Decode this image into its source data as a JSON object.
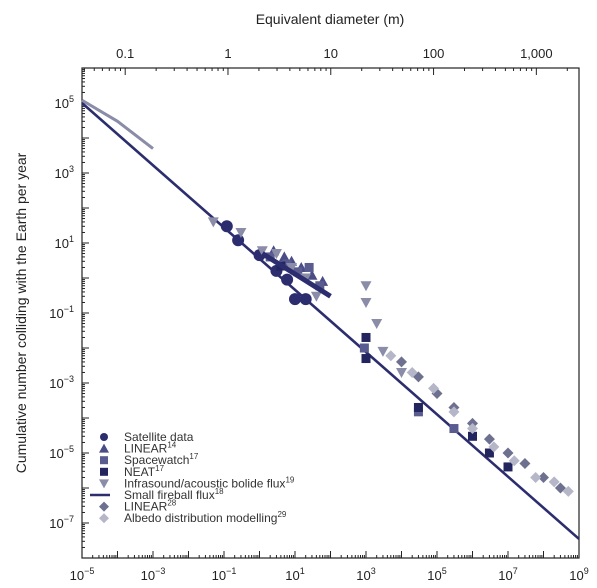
{
  "chart_data": {
    "type": "scatter",
    "title": "",
    "xlabel": "",
    "ylabel": "Cumulative number colliding with the Earth per year",
    "top_xlabel": "Equivalent diameter (m)",
    "x_scale": "log",
    "y_scale": "log",
    "xlim": [
      1e-05,
      1000000000.0
    ],
    "ylim": [
      1e-08,
      1000000.0
    ],
    "top_xlim_m": [
      0.038,
      2600
    ],
    "x_ticks": [
      {
        "exp": -5,
        "label": "10",
        "sup": "−5"
      },
      {
        "exp": -3,
        "label": "10",
        "sup": "−3"
      },
      {
        "exp": -1,
        "label": "10",
        "sup": "−1"
      },
      {
        "exp": 1,
        "label": "10",
        "sup": "1"
      },
      {
        "exp": 3,
        "label": "10",
        "sup": "3"
      },
      {
        "exp": 5,
        "label": "10",
        "sup": "5"
      },
      {
        "exp": 7,
        "label": "10",
        "sup": "7"
      },
      {
        "exp": 9,
        "label": "10",
        "sup": "9"
      }
    ],
    "y_ticks": [
      {
        "exp": 5,
        "label": "10",
        "sup": "5"
      },
      {
        "exp": 3,
        "label": "10",
        "sup": "3"
      },
      {
        "exp": 1,
        "label": "10",
        "sup": "1"
      },
      {
        "exp": -1,
        "label": "10",
        "sup": "−1"
      },
      {
        "exp": -3,
        "label": "10",
        "sup": "−3"
      },
      {
        "exp": -5,
        "label": "10",
        "sup": "−5"
      },
      {
        "exp": -7,
        "label": "10",
        "sup": "−7"
      }
    ],
    "top_ticks": [
      {
        "value": 0.1,
        "label": "0.1"
      },
      {
        "value": 1,
        "label": "1"
      },
      {
        "value": 10,
        "label": "10"
      },
      {
        "value": 100,
        "label": "100"
      },
      {
        "value": 1000,
        "label": "1,000"
      }
    ],
    "legend": {
      "placement": "bottom-left",
      "entries": [
        {
          "marker": "circle",
          "color": "#2b2d6e",
          "label": "Satellite data",
          "sup": ""
        },
        {
          "marker": "triangle-up",
          "color": "#4a4c86",
          "label": "LINEAR",
          "sup": "14"
        },
        {
          "marker": "square",
          "color": "#5a5c90",
          "label": "Spacewatch",
          "sup": "17"
        },
        {
          "marker": "square",
          "color": "#23255e",
          "label": "NEAT",
          "sup": "17"
        },
        {
          "marker": "triangle-down",
          "color": "#8a8ca8",
          "label": "Infrasound/acoustic bolide flux",
          "sup": "19"
        },
        {
          "marker": "line",
          "color": "#2b2d6e",
          "label": "Small fireball flux",
          "sup": "18"
        },
        {
          "marker": "diamond",
          "color": "#6e7090",
          "label": "LINEAR",
          "sup": "28"
        },
        {
          "marker": "diamond",
          "color": "#b5b7c8",
          "label": "Albedo distribution modelling",
          "sup": "29"
        }
      ]
    },
    "power_law_line": {
      "x": [
        1e-05,
        1000000000.0
      ],
      "y": [
        100000.0,
        3.5e-08
      ],
      "color": "#2b2d6e"
    },
    "series": [
      {
        "marker": "circle",
        "color": "#2b2d6e",
        "points": [
          [
            0.12,
            30
          ],
          [
            0.25,
            12
          ],
          [
            1.0,
            4.5
          ],
          [
            3.0,
            1.6
          ],
          [
            6.0,
            0.9
          ],
          [
            10,
            0.25
          ],
          [
            20,
            0.25
          ]
        ]
      },
      {
        "marker": "triangle-up",
        "color": "#4a4c86",
        "points": [
          [
            2.5,
            6
          ],
          [
            5.0,
            4
          ],
          [
            8.0,
            3
          ],
          [
            15,
            2
          ],
          [
            30,
            1.2
          ],
          [
            60,
            0.8
          ]
        ]
      },
      {
        "marker": "square",
        "color": "#5a5c90",
        "points": [
          [
            2.0,
            4
          ],
          [
            6.0,
            2.5
          ],
          [
            12,
            1.5
          ],
          [
            25,
            2.0
          ],
          [
            50,
            0.6
          ],
          [
            900,
            0.01
          ],
          [
            30000.0,
            0.00015
          ],
          [
            300000.0,
            5e-05
          ]
        ]
      },
      {
        "marker": "square",
        "color": "#23255e",
        "points": [
          [
            4.0,
            2.2
          ],
          [
            1000,
            0.02
          ],
          [
            1000,
            0.005
          ],
          [
            30000.0,
            0.0002
          ],
          [
            1000000.0,
            3e-05
          ],
          [
            3000000.0,
            1e-05
          ],
          [
            10000000.0,
            4e-06
          ]
        ]
      },
      {
        "marker": "triangle-down",
        "color": "#8a8ca8",
        "points": [
          [
            0.05,
            40
          ],
          [
            0.3,
            20
          ],
          [
            1.2,
            6
          ],
          [
            3.0,
            5
          ],
          [
            8.0,
            2
          ],
          [
            20,
            1.0
          ],
          [
            40,
            0.3
          ],
          [
            1000,
            0.6
          ],
          [
            1000,
            0.2
          ],
          [
            2000,
            0.05
          ],
          [
            3000,
            0.008
          ],
          [
            10000,
            0.002
          ]
        ]
      },
      {
        "marker": "diamond",
        "color": "#6e7090",
        "points": [
          [
            10000.0,
            0.004
          ],
          [
            30000.0,
            0.0015
          ],
          [
            100000.0,
            0.0005
          ],
          [
            300000.0,
            0.0002
          ],
          [
            1000000.0,
            7e-05
          ],
          [
            3000000.0,
            2.5e-05
          ],
          [
            10000000.0,
            1e-05
          ],
          [
            30000000.0,
            5e-06
          ],
          [
            100000000.0,
            2e-06
          ],
          [
            300000000.0,
            1e-06
          ]
        ]
      },
      {
        "marker": "diamond",
        "color": "#b5b7c8",
        "points": [
          [
            5000.0,
            0.006
          ],
          [
            20000.0,
            0.002
          ],
          [
            80000.0,
            0.0007
          ],
          [
            300000.0,
            0.00015
          ],
          [
            1000000.0,
            5e-05
          ],
          [
            4000000.0,
            1.5e-05
          ],
          [
            15000000.0,
            6e-06
          ],
          [
            60000000.0,
            2e-06
          ],
          [
            200000000.0,
            1.5e-06
          ],
          [
            500000000.0,
            8e-07
          ]
        ]
      },
      {
        "marker": "line",
        "color": "#2b2d6e",
        "points": [
          [
            1.2,
            5
          ],
          [
            100,
            0.3
          ]
        ]
      },
      {
        "marker": "line",
        "color": "#8a8ca8",
        "points": [
          [
            1e-05,
            120000.0
          ],
          [
            0.0001,
            30000.0
          ],
          [
            0.001,
            5000.0
          ]
        ]
      }
    ]
  }
}
